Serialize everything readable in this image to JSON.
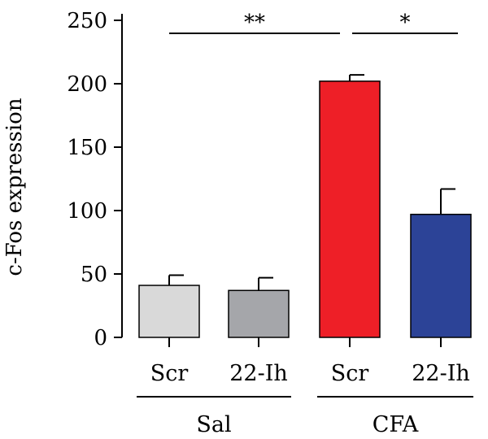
{
  "chart_data": {
    "type": "bar",
    "ylabel": "c-Fos expression",
    "ylim": [
      0,
      250
    ],
    "yticks": [
      "0",
      "50",
      "100",
      "150",
      "200",
      "250"
    ],
    "categories": [
      "Scr",
      "22-Ih",
      "Scr",
      "22-Ih"
    ],
    "values": [
      41,
      37,
      202,
      97
    ],
    "errors": [
      8,
      10,
      5,
      20
    ],
    "colors": [
      "#d9d9d9",
      "#a5a6aa",
      "#ee1f27",
      "#2c4397"
    ],
    "groups": [
      {
        "label": "Sal",
        "members": [
          0,
          1
        ]
      },
      {
        "label": "CFA",
        "members": [
          2,
          3
        ]
      }
    ],
    "significance": [
      {
        "from": 0,
        "to": 2,
        "label": "**"
      },
      {
        "from": 2,
        "to": 3,
        "label": "*"
      }
    ]
  }
}
